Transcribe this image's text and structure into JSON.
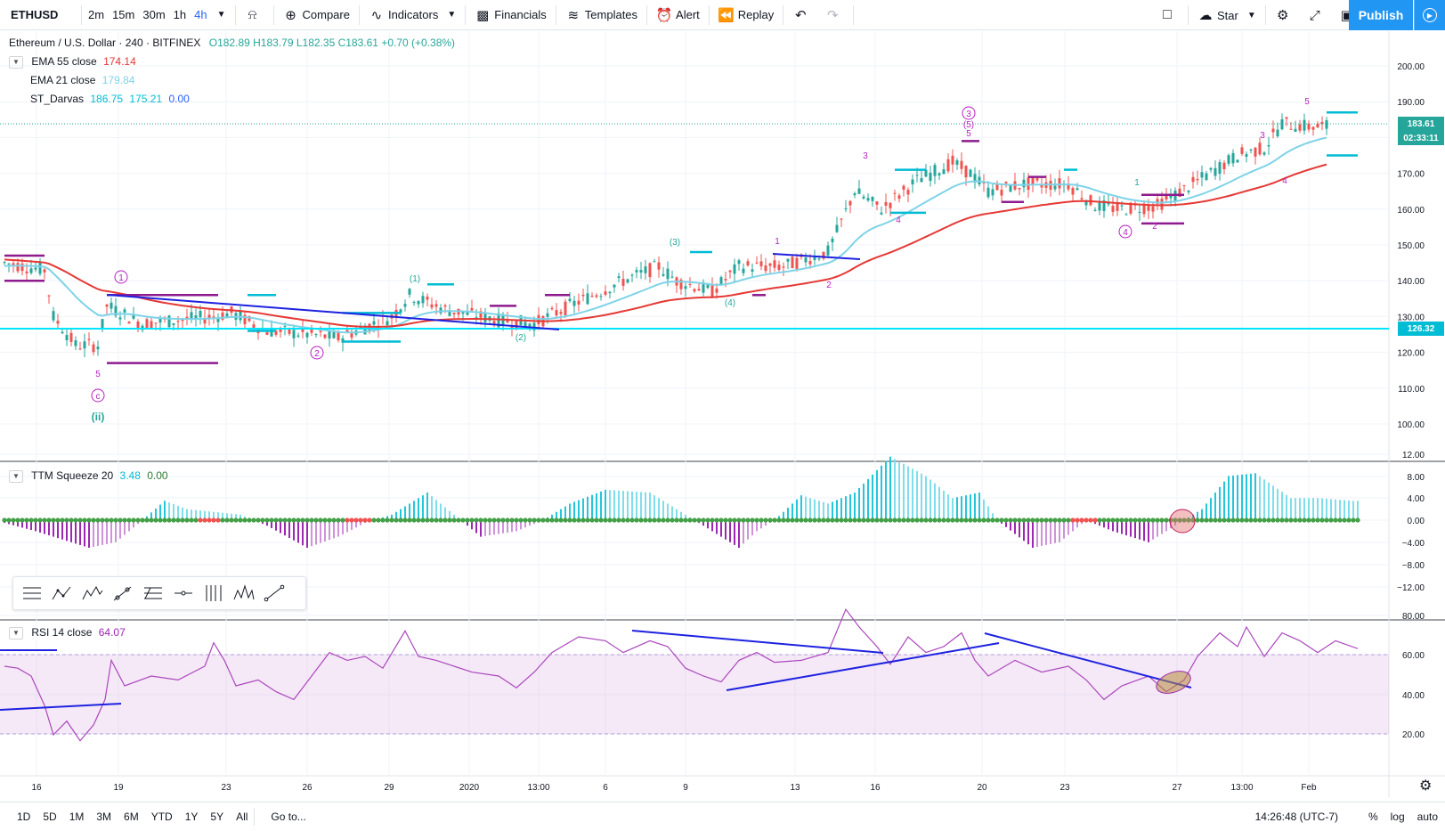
{
  "toolbar": {
    "symbol": "ETHUSD",
    "intervals": [
      "2m",
      "15m",
      "30m",
      "1h",
      "4h"
    ],
    "active_interval": "4h",
    "compare_label": "Compare",
    "indicators_label": "Indicators",
    "financials_label": "Financials",
    "templates_label": "Templates",
    "alert_label": "Alert",
    "replay_label": "Replay",
    "layout_name": "Star",
    "publish_label": "Publish"
  },
  "main_legend": {
    "title": "Ethereum / U.S. Dollar · 240 · BITFINEX",
    "o": "O182.89",
    "h": "H183.79",
    "l": "L182.35",
    "c": "C183.61",
    "change": "+0.70 (+0.38%)",
    "ema55_label": "EMA 55 close",
    "ema55_value": "174.14",
    "ema21_label": "EMA 21 close",
    "ema21_value": "179.84",
    "darvas_label": "ST_Darvas",
    "darvas_v1": "186.75",
    "darvas_v2": "175.21",
    "darvas_v3": "0.00"
  },
  "price_axis": [
    "200.00",
    "190.00",
    "180.00",
    "170.00",
    "160.00",
    "150.00",
    "140.00",
    "130.00",
    "120.00",
    "110.00",
    "100.00"
  ],
  "last_price": "183.61",
  "countdown": "02:33:11",
  "hline_price": "126.32",
  "ttm": {
    "label": "TTM Squeeze 20",
    "v1": "3.48",
    "v2": "0.00",
    "axis": [
      "12.00",
      "8.00",
      "4.00",
      "0.00",
      "−4.00",
      "−8.00",
      "−12.00"
    ]
  },
  "rsi": {
    "label": "RSI 14 close",
    "value": "64.07",
    "axis": [
      "80.00",
      "60.00",
      "40.00",
      "20.00"
    ]
  },
  "time_axis": [
    "16",
    "19",
    "23",
    "26",
    "29",
    "2020",
    "13:00",
    "6",
    "9",
    "13",
    "16",
    "20",
    "23",
    "27",
    "13:00",
    "Feb"
  ],
  "wave_labels": {
    "w1_circle": "1",
    "w2_circle": "2",
    "wc_circle": "c",
    "wii": "(ii)",
    "w5a": "5",
    "p1": "(1)",
    "p2": "(2)",
    "p3": "(3)",
    "p4": "(4)",
    "w3_circle": "3",
    "w5b": "(5)",
    "w5c": "5",
    "w4_circle": "4",
    "s1": "1",
    "s2": "2",
    "s3": "3",
    "s4": "4",
    "s5": "5",
    "t1": "1",
    "t2": "2",
    "t3": "3",
    "t4": "4"
  },
  "bottom": {
    "ranges": [
      "1D",
      "5D",
      "1M",
      "3M",
      "6M",
      "YTD",
      "1Y",
      "5Y",
      "All"
    ],
    "goto": "Go to...",
    "clock": "14:26:48 (UTC-7)",
    "pct": "%",
    "log": "log",
    "auto": "auto"
  },
  "colors": {
    "ema55": "#e53935",
    "ema21": "#7fd3e8",
    "darvas": "#00bcd4",
    "trendline": "#1e22e0",
    "up": "#26a69a",
    "down": "#ef5350",
    "wave": "#b81ec2",
    "rsi": "#9c27b0"
  }
}
